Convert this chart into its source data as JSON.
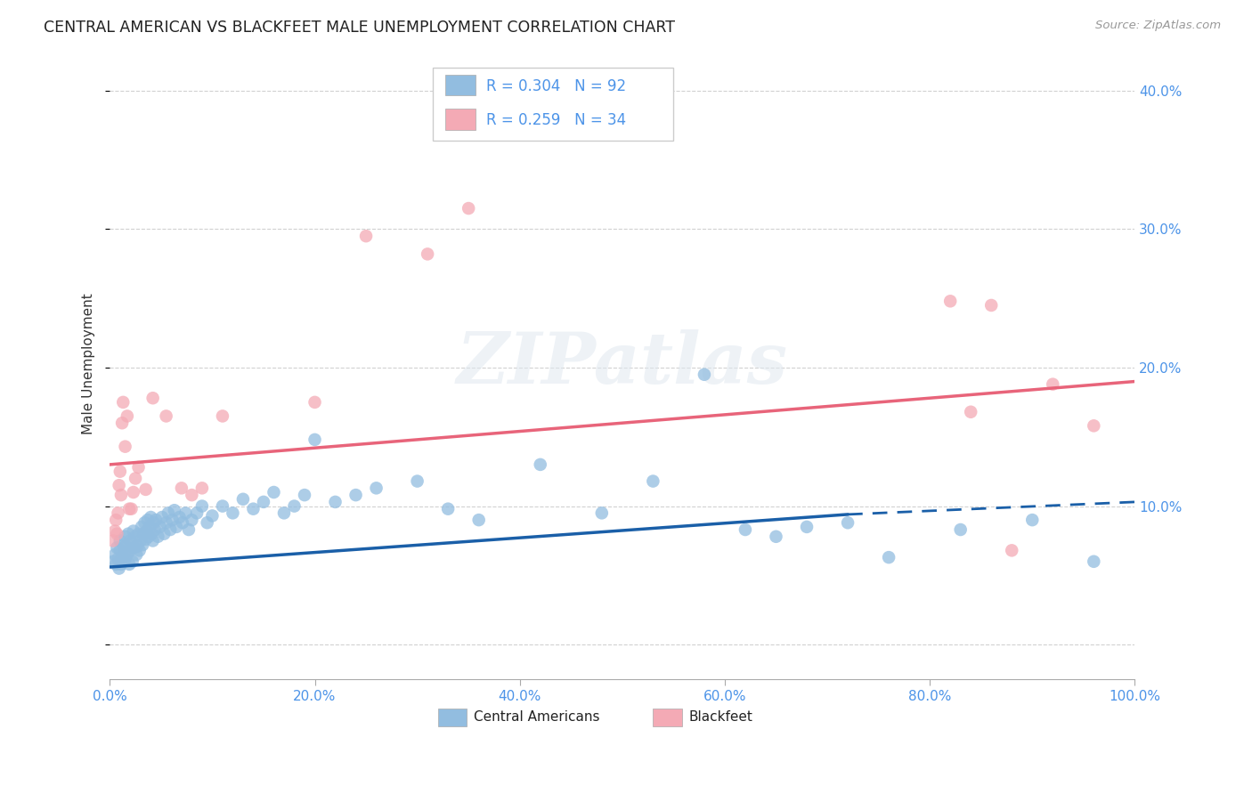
{
  "title": "CENTRAL AMERICAN VS BLACKFEET MALE UNEMPLOYMENT CORRELATION CHART",
  "source": "Source: ZipAtlas.com",
  "ylabel": "Male Unemployment",
  "xlim": [
    0.0,
    1.0
  ],
  "ylim": [
    -0.025,
    0.43
  ],
  "xtick_labels": [
    "0.0%",
    "20.0%",
    "40.0%",
    "60.0%",
    "80.0%",
    "100.0%"
  ],
  "xtick_vals": [
    0.0,
    0.2,
    0.4,
    0.6,
    0.8,
    1.0
  ],
  "ytick_labels": [
    "10.0%",
    "20.0%",
    "30.0%",
    "40.0%"
  ],
  "ytick_vals": [
    0.1,
    0.2,
    0.3,
    0.4
  ],
  "blue_color": "#92bde0",
  "pink_color": "#f4aab5",
  "trend_blue": "#1a5fa8",
  "trend_pink": "#e8647a",
  "R_blue": 0.304,
  "N_blue": 92,
  "R_pink": 0.259,
  "N_pink": 34,
  "watermark": "ZIPatlas",
  "legend_labels": [
    "Central Americans",
    "Blackfeet"
  ],
  "blue_scatter_x": [
    0.003,
    0.005,
    0.006,
    0.007,
    0.008,
    0.009,
    0.01,
    0.01,
    0.011,
    0.012,
    0.013,
    0.014,
    0.015,
    0.015,
    0.016,
    0.017,
    0.018,
    0.019,
    0.02,
    0.02,
    0.021,
    0.022,
    0.023,
    0.024,
    0.025,
    0.026,
    0.027,
    0.028,
    0.029,
    0.03,
    0.031,
    0.032,
    0.033,
    0.034,
    0.035,
    0.036,
    0.037,
    0.038,
    0.039,
    0.04,
    0.041,
    0.042,
    0.043,
    0.044,
    0.045,
    0.047,
    0.049,
    0.051,
    0.053,
    0.055,
    0.057,
    0.059,
    0.061,
    0.063,
    0.065,
    0.068,
    0.071,
    0.074,
    0.077,
    0.08,
    0.085,
    0.09,
    0.095,
    0.1,
    0.11,
    0.12,
    0.13,
    0.14,
    0.15,
    0.16,
    0.17,
    0.18,
    0.19,
    0.2,
    0.22,
    0.24,
    0.26,
    0.3,
    0.33,
    0.36,
    0.42,
    0.48,
    0.53,
    0.58,
    0.62,
    0.65,
    0.68,
    0.72,
    0.76,
    0.83,
    0.9,
    0.96
  ],
  "blue_scatter_y": [
    0.06,
    0.065,
    0.058,
    0.07,
    0.062,
    0.055,
    0.068,
    0.075,
    0.058,
    0.063,
    0.072,
    0.067,
    0.078,
    0.062,
    0.071,
    0.065,
    0.08,
    0.058,
    0.075,
    0.068,
    0.073,
    0.06,
    0.082,
    0.07,
    0.078,
    0.065,
    0.071,
    0.08,
    0.068,
    0.075,
    0.085,
    0.072,
    0.08,
    0.088,
    0.076,
    0.082,
    0.09,
    0.078,
    0.085,
    0.092,
    0.08,
    0.075,
    0.088,
    0.083,
    0.09,
    0.078,
    0.085,
    0.092,
    0.08,
    0.088,
    0.095,
    0.083,
    0.09,
    0.097,
    0.085,
    0.092,
    0.088,
    0.095,
    0.083,
    0.09,
    0.095,
    0.1,
    0.088,
    0.093,
    0.1,
    0.095,
    0.105,
    0.098,
    0.103,
    0.11,
    0.095,
    0.1,
    0.108,
    0.148,
    0.103,
    0.108,
    0.113,
    0.118,
    0.098,
    0.09,
    0.13,
    0.095,
    0.118,
    0.195,
    0.083,
    0.078,
    0.085,
    0.088,
    0.063,
    0.083,
    0.09,
    0.06
  ],
  "pink_scatter_x": [
    0.003,
    0.005,
    0.006,
    0.007,
    0.008,
    0.009,
    0.01,
    0.011,
    0.012,
    0.013,
    0.015,
    0.017,
    0.019,
    0.021,
    0.023,
    0.025,
    0.028,
    0.035,
    0.042,
    0.055,
    0.07,
    0.08,
    0.09,
    0.11,
    0.2,
    0.25,
    0.31,
    0.35,
    0.82,
    0.84,
    0.86,
    0.88,
    0.92,
    0.96
  ],
  "pink_scatter_y": [
    0.075,
    0.082,
    0.09,
    0.08,
    0.095,
    0.115,
    0.125,
    0.108,
    0.16,
    0.175,
    0.143,
    0.165,
    0.098,
    0.098,
    0.11,
    0.12,
    0.128,
    0.112,
    0.178,
    0.165,
    0.113,
    0.108,
    0.113,
    0.165,
    0.175,
    0.295,
    0.282,
    0.315,
    0.248,
    0.168,
    0.245,
    0.068,
    0.188,
    0.158
  ],
  "blue_trend_x0": 0.0,
  "blue_trend_y0": 0.056,
  "blue_trend_x1": 0.72,
  "blue_trend_y1": 0.094,
  "blue_trend_dash_x0": 0.72,
  "blue_trend_dash_y0": 0.094,
  "blue_trend_dash_x1": 1.0,
  "blue_trend_dash_y1": 0.103,
  "pink_trend_x0": 0.0,
  "pink_trend_y0": 0.13,
  "pink_trend_x1": 1.0,
  "pink_trend_y1": 0.19
}
